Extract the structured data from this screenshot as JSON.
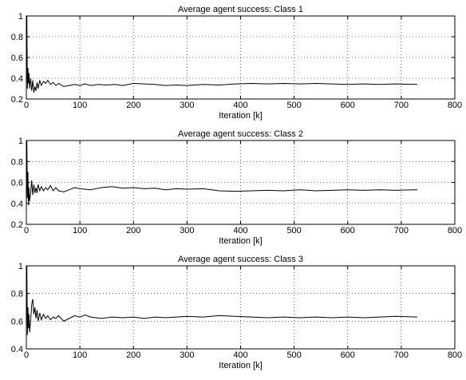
{
  "chart_data": [
    {
      "type": "line",
      "title": "Average agent success: Class 1",
      "xlabel": "Iteration [k]",
      "ylabel": "",
      "xlim": [
        0,
        800
      ],
      "ylim": [
        0.2,
        1
      ],
      "xticks": [
        "0",
        "100",
        "200",
        "300",
        "400",
        "500",
        "600",
        "700",
        "800"
      ],
      "yticks": [
        "0.2",
        "0.4",
        "0.6",
        "0.8",
        "1"
      ],
      "grid": true,
      "series": [
        {
          "x": [
            0,
            1,
            2,
            3,
            4,
            5,
            6,
            8,
            10,
            12,
            14,
            16,
            18,
            20,
            22,
            25,
            28,
            32,
            36,
            40,
            45,
            50,
            55,
            60,
            70,
            80,
            90,
            100,
            110,
            120,
            135,
            150,
            165,
            180,
            200,
            220,
            240,
            260,
            280,
            300,
            330,
            360,
            390,
            420,
            450,
            480,
            510,
            540,
            570,
            600,
            630,
            660,
            690,
            730
          ],
          "y": [
            0.25,
            1.0,
            0.3,
            0.5,
            0.35,
            0.45,
            0.3,
            0.4,
            0.28,
            0.38,
            0.26,
            0.32,
            0.28,
            0.36,
            0.3,
            0.38,
            0.33,
            0.37,
            0.35,
            0.38,
            0.34,
            0.36,
            0.33,
            0.35,
            0.32,
            0.33,
            0.34,
            0.33,
            0.345,
            0.33,
            0.34,
            0.335,
            0.34,
            0.33,
            0.35,
            0.345,
            0.34,
            0.33,
            0.335,
            0.33,
            0.34,
            0.335,
            0.345,
            0.35,
            0.345,
            0.35,
            0.345,
            0.35,
            0.345,
            0.34,
            0.345,
            0.34,
            0.345,
            0.34
          ]
        }
      ]
    },
    {
      "type": "line",
      "title": "Average agent success: Class 2",
      "xlabel": "Iteration [k]",
      "ylabel": "",
      "xlim": [
        0,
        800
      ],
      "ylim": [
        0.2,
        1
      ],
      "xticks": [
        "0",
        "100",
        "200",
        "300",
        "400",
        "500",
        "600",
        "700",
        "800"
      ],
      "yticks": [
        "0.2",
        "0.4",
        "0.6",
        "0.8",
        "1"
      ],
      "grid": true,
      "series": [
        {
          "x": [
            0,
            1,
            2,
            3,
            4,
            5,
            6,
            8,
            10,
            12,
            14,
            16,
            18,
            20,
            22,
            25,
            28,
            32,
            36,
            40,
            45,
            50,
            55,
            60,
            70,
            80,
            90,
            100,
            120,
            140,
            160,
            180,
            200,
            220,
            240,
            260,
            280,
            300,
            330,
            360,
            390,
            420,
            450,
            480,
            510,
            540,
            570,
            600,
            630,
            660,
            690,
            730
          ],
          "y": [
            0.35,
            1.0,
            0.45,
            0.7,
            0.38,
            0.55,
            0.42,
            0.5,
            0.62,
            0.48,
            0.58,
            0.5,
            0.55,
            0.5,
            0.58,
            0.52,
            0.56,
            0.52,
            0.55,
            0.53,
            0.57,
            0.52,
            0.55,
            0.52,
            0.51,
            0.53,
            0.55,
            0.54,
            0.53,
            0.55,
            0.56,
            0.545,
            0.55,
            0.54,
            0.545,
            0.53,
            0.54,
            0.535,
            0.54,
            0.52,
            0.515,
            0.52,
            0.525,
            0.52,
            0.53,
            0.52,
            0.525,
            0.53,
            0.525,
            0.53,
            0.525,
            0.53
          ]
        }
      ]
    },
    {
      "type": "line",
      "title": "Average agent success: Class 3",
      "xlabel": "Iteration [k]",
      "ylabel": "",
      "xlim": [
        0,
        800
      ],
      "ylim": [
        0.4,
        1
      ],
      "xticks": [
        "0",
        "100",
        "200",
        "300",
        "400",
        "500",
        "600",
        "700",
        "800"
      ],
      "yticks": [
        "0.4",
        "0.6",
        "0.8",
        "1"
      ],
      "grid": true,
      "series": [
        {
          "x": [
            0,
            1,
            2,
            3,
            4,
            5,
            6,
            8,
            10,
            12,
            14,
            16,
            18,
            20,
            22,
            25,
            28,
            32,
            36,
            40,
            45,
            50,
            55,
            60,
            70,
            80,
            90,
            100,
            110,
            120,
            140,
            160,
            180,
            200,
            220,
            240,
            260,
            280,
            300,
            330,
            360,
            390,
            420,
            450,
            480,
            510,
            540,
            570,
            600,
            630,
            660,
            690,
            730
          ],
          "y": [
            0.55,
            1.0,
            0.5,
            0.7,
            0.55,
            0.65,
            0.52,
            0.6,
            0.72,
            0.76,
            0.65,
            0.7,
            0.62,
            0.68,
            0.6,
            0.66,
            0.61,
            0.65,
            0.62,
            0.64,
            0.61,
            0.63,
            0.62,
            0.64,
            0.6,
            0.62,
            0.64,
            0.63,
            0.645,
            0.63,
            0.62,
            0.63,
            0.625,
            0.63,
            0.62,
            0.63,
            0.625,
            0.63,
            0.635,
            0.63,
            0.64,
            0.635,
            0.63,
            0.625,
            0.63,
            0.625,
            0.63,
            0.625,
            0.63,
            0.625,
            0.63,
            0.635,
            0.63
          ]
        }
      ]
    }
  ]
}
